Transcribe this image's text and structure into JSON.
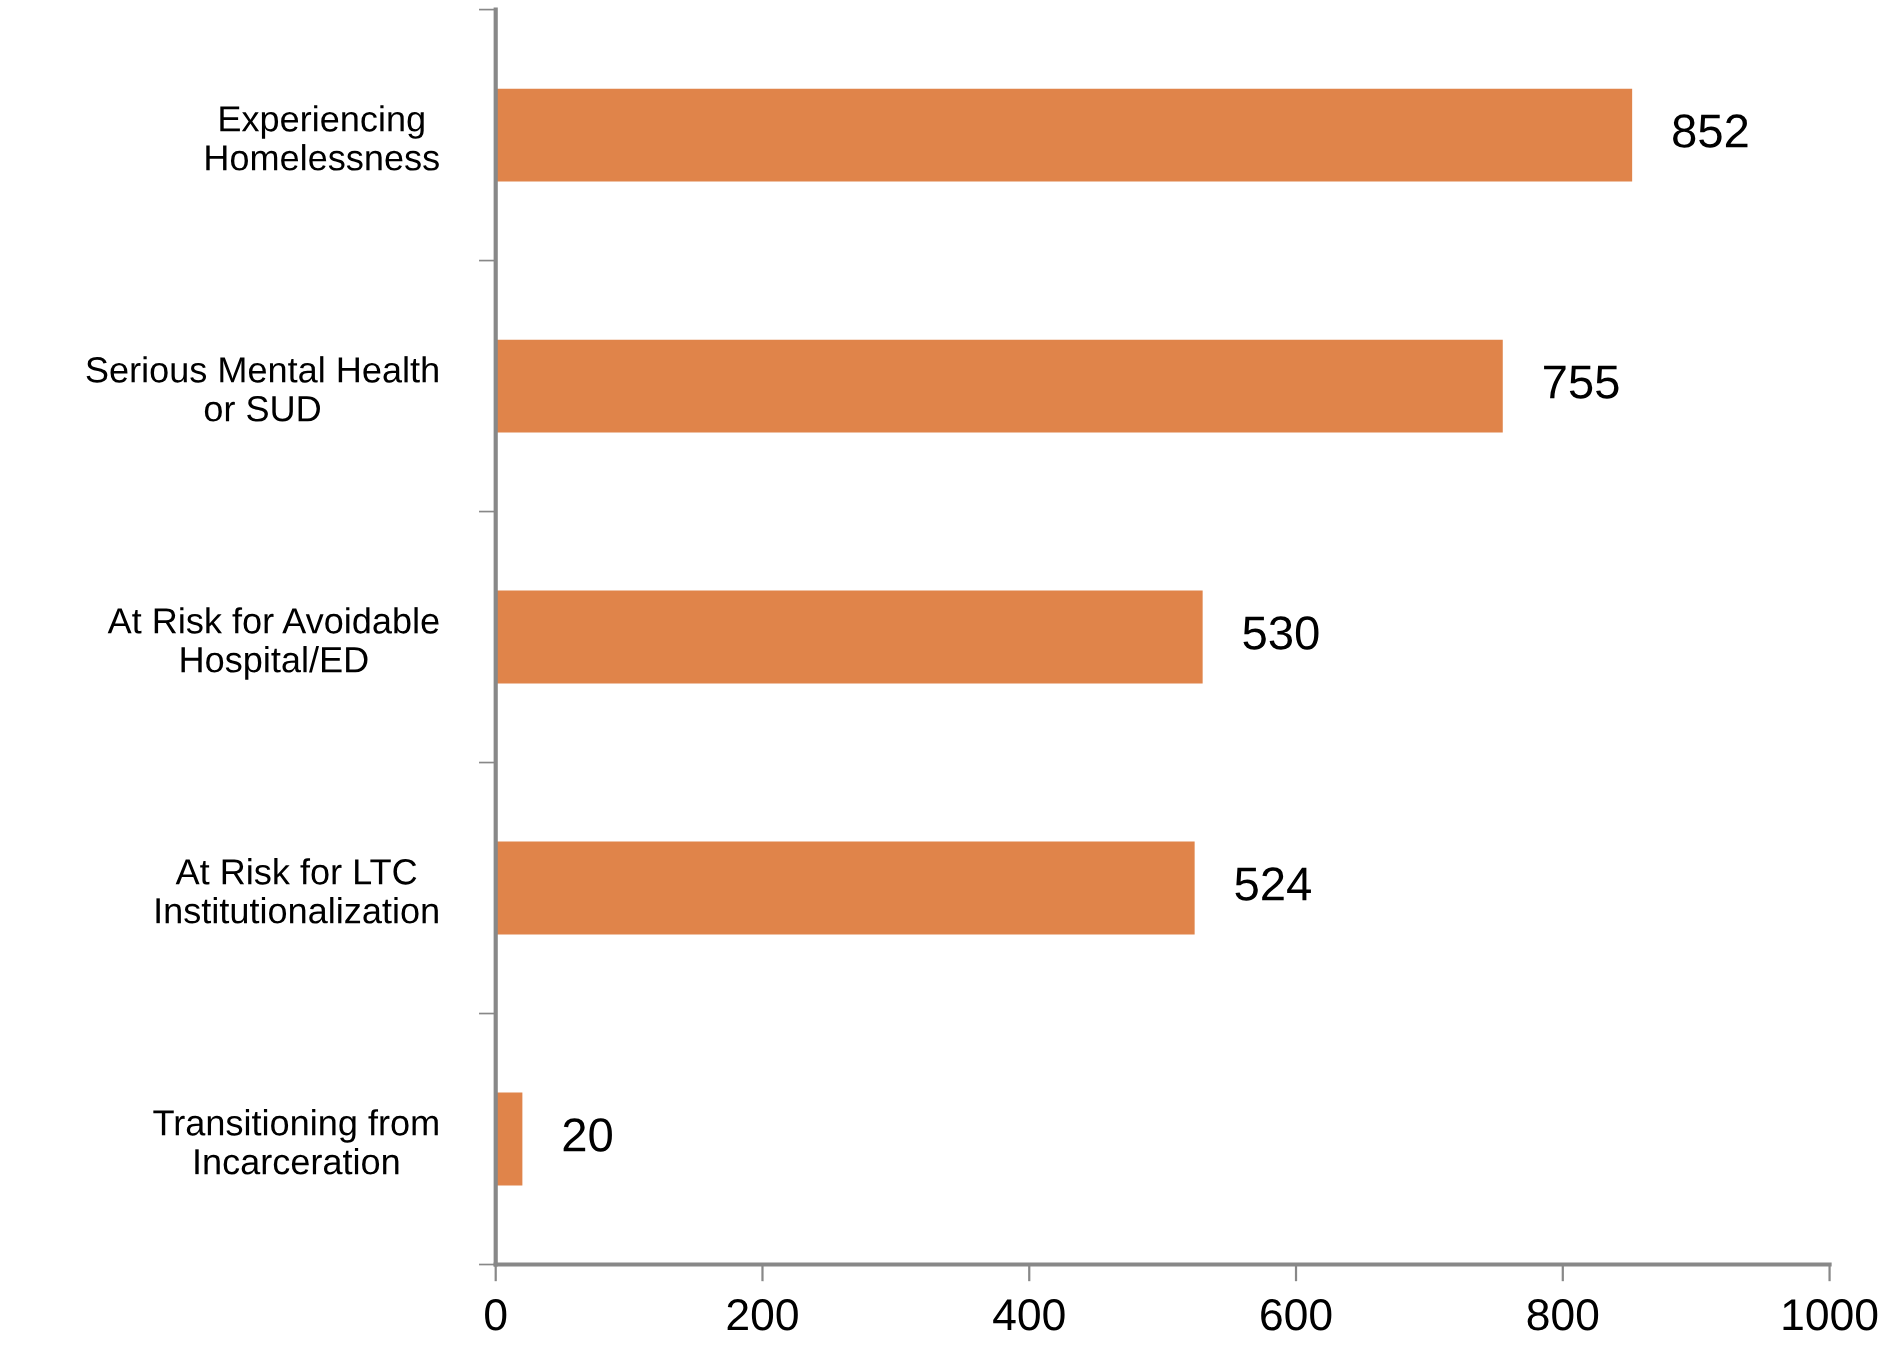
{
  "chart_data": {
    "type": "bar",
    "orientation": "horizontal",
    "categories": [
      "Experiencing\nHomelessness",
      "Serious Mental Health\nor SUD",
      "At Risk for Avoidable\nHospital/ED",
      "At Risk for LTC\nInstitutionalization",
      "Transitioning from\nIncarceration"
    ],
    "values": [
      852,
      755,
      530,
      524,
      20
    ],
    "color": "#e0844a",
    "xlim": [
      0,
      1000
    ],
    "xticks": [
      0,
      200,
      400,
      600,
      800,
      1000
    ],
    "data_labels": true,
    "grid": false,
    "legend": false
  }
}
